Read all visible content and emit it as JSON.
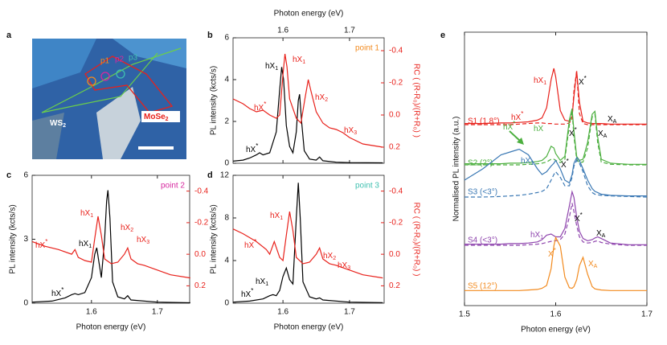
{
  "image_panel": {
    "panel_label": "a",
    "labels": [
      {
        "text": "p1",
        "color": "#f28a1e"
      },
      {
        "text": "p2",
        "color": "#d6289f"
      },
      {
        "text": "p3",
        "color": "#3fc0b0"
      },
      {
        "text": "WS",
        "sub": "2",
        "color": "#ffffff"
      },
      {
        "text": "MoSe",
        "sub": "2",
        "color": "#e8211b"
      }
    ]
  },
  "chart_data": [
    {
      "type": "line",
      "panel_label": "b",
      "point_label": "point 1",
      "point_color": "#f28a1e",
      "x_axis_side": "top",
      "xlabel": "Photon energy (eV)",
      "ylabel": "PL intensity (kcts/s)",
      "y2label": "RC ( (R-R₀)/(R+R₀) )",
      "xlim": [
        1.525,
        1.752
      ],
      "xticks": [
        1.6,
        1.7
      ],
      "ylim": [
        0,
        6
      ],
      "yticks": [
        0,
        2,
        4,
        6
      ],
      "y2lim": [
        0.3,
        -0.48
      ],
      "y2ticks": [
        -0.4,
        -0.2,
        {
          "value": 0,
          "label": "0.0"
        },
        0.2
      ],
      "series": [
        {
          "color": "#000000",
          "x": [
            1.525,
            1.54,
            1.55,
            1.56,
            1.565,
            1.57,
            1.58,
            1.59,
            1.595,
            1.598,
            1.601,
            1.605,
            1.61,
            1.615,
            1.62,
            1.623,
            1.625,
            1.628,
            1.632,
            1.64,
            1.65,
            1.655,
            1.66,
            1.68,
            1.7,
            1.75
          ],
          "values": [
            0.1,
            0.15,
            0.25,
            0.4,
            0.5,
            0.4,
            0.5,
            1.5,
            3.5,
            4.6,
            4.0,
            1.8,
            0.8,
            0.5,
            1.5,
            3.0,
            3.3,
            2.0,
            0.6,
            0.2,
            0.15,
            0.3,
            0.12,
            0.05,
            0.03,
            0.02
          ]
        },
        {
          "color": "#e8211b",
          "axis": "y2",
          "x": [
            1.525,
            1.54,
            1.55,
            1.56,
            1.57,
            1.58,
            1.59,
            1.595,
            1.6,
            1.603,
            1.606,
            1.61,
            1.62,
            1.627,
            1.633,
            1.638,
            1.642,
            1.65,
            1.66,
            1.67,
            1.68,
            1.69,
            1.7,
            1.72,
            1.75
          ],
          "values": [
            -0.1,
            -0.07,
            -0.04,
            -0.02,
            -0.03,
            0.0,
            0.02,
            0.0,
            -0.25,
            -0.38,
            -0.3,
            -0.1,
            0.02,
            0.05,
            -0.1,
            -0.22,
            -0.15,
            -0.02,
            0.05,
            0.08,
            0.09,
            0.11,
            0.14,
            0.18,
            0.2
          ]
        }
      ],
      "annotations": [
        {
          "text": "hX",
          "sub": "1",
          "color": "#000000"
        },
        {
          "text": "hX",
          "sup": "*",
          "color": "#000000"
        },
        {
          "text": "hX",
          "sub": "1",
          "color": "#e8211b"
        },
        {
          "text": "hX",
          "sup": "*",
          "color": "#e8211b"
        },
        {
          "text": "hX",
          "sub": "2",
          "color": "#e8211b"
        },
        {
          "text": "hX",
          "sub": "3",
          "color": "#e8211b"
        }
      ]
    },
    {
      "type": "line",
      "panel_label": "c",
      "point_label": "point 2",
      "point_color": "#d6289f",
      "x_axis_side": "bottom",
      "xlabel": "Photon energy (eV)",
      "ylabel": "PL intensity (kcts/s)",
      "xlim": [
        1.51,
        1.749
      ],
      "xticks": [
        1.6,
        1.7
      ],
      "ylim": [
        0,
        6
      ],
      "yticks": [
        0,
        3,
        6
      ],
      "y2lim": [
        0.31,
        -0.5
      ],
      "y2ticks": [
        -0.4,
        -0.2,
        {
          "value": 0,
          "label": "0.0"
        },
        0.2
      ],
      "series": [
        {
          "color": "#000000",
          "x": [
            1.51,
            1.54,
            1.56,
            1.57,
            1.575,
            1.58,
            1.59,
            1.6,
            1.605,
            1.608,
            1.611,
            1.615,
            1.62,
            1.623,
            1.625,
            1.628,
            1.632,
            1.64,
            1.65,
            1.655,
            1.66,
            1.7,
            1.75
          ],
          "values": [
            0.05,
            0.1,
            0.25,
            0.4,
            0.45,
            0.4,
            0.5,
            1.2,
            2.3,
            2.6,
            2.0,
            1.2,
            3.0,
            4.8,
            5.3,
            4.0,
            1.0,
            0.3,
            0.2,
            0.35,
            0.15,
            0.05,
            0.02
          ]
        },
        {
          "color": "#e8211b",
          "axis": "y2",
          "x": [
            1.51,
            1.53,
            1.55,
            1.57,
            1.575,
            1.58,
            1.59,
            1.6,
            1.605,
            1.61,
            1.615,
            1.62,
            1.63,
            1.64,
            1.65,
            1.655,
            1.66,
            1.67,
            1.68,
            1.7,
            1.72,
            1.75
          ],
          "values": [
            -0.08,
            -0.05,
            -0.03,
            0.0,
            -0.03,
            0.02,
            0.04,
            0.05,
            -0.1,
            -0.24,
            -0.12,
            0.03,
            0.06,
            0.05,
            0.0,
            -0.04,
            0.03,
            0.06,
            0.07,
            0.1,
            0.13,
            0.15
          ]
        }
      ],
      "annotations": [
        {
          "text": "hX",
          "sup": "*",
          "color": "#000000"
        },
        {
          "text": "hX",
          "sub": "1",
          "color": "#000000"
        },
        {
          "text": "hX",
          "sub": "1",
          "color": "#e8211b"
        },
        {
          "text": "hX",
          "sup": "*",
          "color": "#e8211b"
        },
        {
          "text": "hX",
          "sub": "2",
          "color": "#e8211b"
        },
        {
          "text": "hX",
          "sub": "3",
          "color": "#e8211b"
        }
      ]
    },
    {
      "type": "line",
      "panel_label": "d",
      "point_label": "point 3",
      "point_color": "#3fc0b0",
      "x_axis_side": "bottom",
      "xlabel": "Photon energy (eV)",
      "ylabel": "PL intensity (kcts/s)",
      "y2label": "RC ( (R-R₀)/(R+R₀) )",
      "xlim": [
        1.525,
        1.752
      ],
      "xticks": [
        1.6,
        1.7
      ],
      "ylim": [
        0,
        12
      ],
      "yticks": [
        0,
        4,
        8,
        12
      ],
      "y2lim": [
        0.31,
        -0.5
      ],
      "y2ticks": [
        -0.4,
        -0.2,
        {
          "value": 0,
          "label": "0.0"
        },
        0.2
      ],
      "series": [
        {
          "color": "#000000",
          "x": [
            1.525,
            1.55,
            1.57,
            1.58,
            1.585,
            1.59,
            1.595,
            1.6,
            1.605,
            1.61,
            1.615,
            1.62,
            1.623,
            1.626,
            1.63,
            1.64,
            1.65,
            1.655,
            1.66,
            1.7,
            1.75
          ],
          "values": [
            0.1,
            0.2,
            0.4,
            0.7,
            0.8,
            0.7,
            1.2,
            2.5,
            3.3,
            2.2,
            1.8,
            8.0,
            11.3,
            8.0,
            2.0,
            0.6,
            0.4,
            0.5,
            0.3,
            0.1,
            0.05
          ]
        },
        {
          "color": "#e8211b",
          "axis": "y2",
          "x": [
            1.525,
            1.54,
            1.56,
            1.575,
            1.58,
            1.587,
            1.595,
            1.6,
            1.605,
            1.61,
            1.615,
            1.62,
            1.63,
            1.64,
            1.65,
            1.655,
            1.66,
            1.67,
            1.68,
            1.7,
            1.72,
            1.75
          ],
          "values": [
            -0.16,
            -0.13,
            -0.08,
            -0.03,
            0.0,
            -0.08,
            0.02,
            0.04,
            -0.12,
            -0.27,
            -0.15,
            0.02,
            0.06,
            0.05,
            0.0,
            -0.04,
            0.03,
            0.06,
            0.07,
            0.1,
            0.13,
            0.15
          ]
        }
      ],
      "annotations": [
        {
          "text": "hX",
          "sup": "*",
          "color": "#000000"
        },
        {
          "text": "hX",
          "sub": "1",
          "color": "#000000"
        },
        {
          "text": "hX",
          "sub": "1",
          "color": "#e8211b"
        },
        {
          "text": "hX",
          "sup": "*",
          "color": "#e8211b"
        },
        {
          "text": "hX",
          "sub": "2",
          "color": "#e8211b"
        },
        {
          "text": "hX",
          "sub": "3",
          "color": "#e8211b"
        }
      ]
    },
    {
      "type": "line",
      "panel_label": "e",
      "x_axis_side": "bottom",
      "xlabel": "Photon energy (eV)",
      "ylabel": "Normalised PL intensity (a.u.)",
      "xlim": [
        1.5,
        1.7
      ],
      "xticks": [
        1.5,
        1.6,
        1.7
      ],
      "x": [
        1.5,
        1.52,
        1.54,
        1.55,
        1.56,
        1.57,
        1.58,
        1.585,
        1.59,
        1.595,
        1.598,
        1.6,
        1.605,
        1.61,
        1.615,
        1.618,
        1.62,
        1.623,
        1.626,
        1.63,
        1.635,
        1.64,
        1.643,
        1.646,
        1.65,
        1.66,
        1.68,
        1.7
      ],
      "series": [
        {
          "name": "S1 (1.8°)",
          "color": "#e8211b",
          "values": [
            0.02,
            0.02,
            0.03,
            0.03,
            0.04,
            0.05,
            0.08,
            0.12,
            0.3,
            0.8,
            1.0,
            0.85,
            0.25,
            0.08,
            0.06,
            0.15,
            0.5,
            0.95,
            0.4,
            0.06,
            0.03,
            0.02,
            0.02,
            0.02,
            0.02,
            0.01,
            0.01,
            0.01
          ],
          "fit_values": [
            0,
            0,
            0,
            0,
            0.01,
            0.02,
            0.03,
            0.03,
            0.02,
            0.02,
            0.01,
            0.01,
            0.01,
            0.01,
            0.03,
            0.1,
            0.6,
            0.95,
            0.2,
            0.02,
            0,
            0,
            0,
            0,
            0,
            0,
            0,
            0
          ]
        },
        {
          "name": "S2 (2°)",
          "color": "#4caf3f",
          "values": [
            0.02,
            0.02,
            0.02,
            0.03,
            0.03,
            0.04,
            0.06,
            0.08,
            0.15,
            0.33,
            0.3,
            0.2,
            0.08,
            0.15,
            0.8,
            1.0,
            0.6,
            0.15,
            0.08,
            0.1,
            0.4,
            0.9,
            0.95,
            0.5,
            0.1,
            0.03,
            0.01,
            0.01
          ],
          "fit_values": [
            0,
            0,
            0,
            0,
            0,
            0.01,
            0.02,
            0.03,
            0.05,
            0.1,
            0.1,
            0.08,
            0.04,
            0.1,
            0.7,
            0.95,
            0.5,
            0.1,
            0.04,
            0.05,
            0.3,
            0.85,
            0.9,
            0.4,
            0.05,
            0.01,
            0,
            0
          ]
        },
        {
          "name": "S3 (<3°)",
          "color": "#3a78b4",
          "values": [
            0.3,
            0.5,
            0.75,
            0.8,
            0.85,
            0.75,
            0.5,
            0.4,
            0.45,
            0.55,
            0.6,
            0.65,
            0.5,
            0.3,
            0.25,
            0.4,
            0.6,
            0.7,
            0.65,
            0.5,
            0.3,
            0.15,
            0.1,
            0.08,
            0.05,
            0.03,
            0.02,
            0.02
          ],
          "fit_values": [
            0,
            0,
            0.01,
            0.02,
            0.03,
            0.05,
            0.08,
            0.1,
            0.15,
            0.3,
            0.4,
            0.45,
            0.35,
            0.2,
            0.2,
            0.35,
            0.55,
            0.65,
            0.6,
            0.45,
            0.2,
            0.08,
            0.05,
            0.04,
            0.03,
            0.02,
            0.01,
            0
          ]
        },
        {
          "name": "S4 (<3°)",
          "color": "#8e44ad",
          "values": [
            0.02,
            0.02,
            0.02,
            0.03,
            0.03,
            0.04,
            0.06,
            0.1,
            0.18,
            0.2,
            0.17,
            0.15,
            0.15,
            0.3,
            0.7,
            0.95,
            0.85,
            0.5,
            0.25,
            0.12,
            0.08,
            0.1,
            0.13,
            0.15,
            0.12,
            0.04,
            0.01,
            0.01
          ],
          "fit_values": [
            0,
            0,
            0,
            0,
            0,
            0.01,
            0.02,
            0.03,
            0.05,
            0.07,
            0.08,
            0.08,
            0.1,
            0.2,
            0.5,
            0.75,
            0.6,
            0.35,
            0.15,
            0.06,
            0.04,
            0.05,
            0.07,
            0.08,
            0.05,
            0.02,
            0,
            0
          ]
        },
        {
          "name": "S5 (12°)",
          "color": "#f28a1e",
          "values": [
            0.01,
            0.01,
            0.01,
            0.01,
            0.01,
            0.02,
            0.03,
            0.05,
            0.1,
            0.4,
            0.8,
            0.95,
            0.8,
            0.25,
            0.06,
            0.05,
            0.08,
            0.2,
            0.45,
            0.6,
            0.3,
            0.08,
            0.04,
            0.03,
            0.02,
            0.01,
            0.01,
            0.01
          ]
        }
      ],
      "annotations": [
        {
          "text": "hX",
          "sub": "1",
          "color": "#e8211b"
        },
        {
          "text": "X",
          "sup": "*",
          "color": "#000000"
        },
        {
          "text": "hX",
          "sup": "*",
          "color": "#e8211b"
        },
        {
          "text": "X",
          "sub": "A",
          "color": "#000000"
        },
        {
          "text": "hX",
          "sup": "*",
          "color": "#4caf3f"
        },
        {
          "text": "hX",
          "color": "#4caf3f"
        },
        {
          "text": "X",
          "sup": "*",
          "color": "#000000"
        },
        {
          "text": "X",
          "sub": "A",
          "color": "#000000"
        },
        {
          "text": "hX",
          "sub": "1",
          "color": "#3a78b4"
        },
        {
          "text": "X",
          "sup": "*",
          "color": "#000000"
        },
        {
          "text": "hX",
          "sub": "1",
          "color": "#8e44ad"
        },
        {
          "text": "X",
          "sup": "*",
          "color": "#000000"
        },
        {
          "text": "X",
          "sub": "A",
          "color": "#000000"
        },
        {
          "text": "X",
          "sup": "*",
          "color": "#f28a1e"
        },
        {
          "text": "X",
          "sub": "A",
          "color": "#f28a1e"
        }
      ]
    }
  ]
}
